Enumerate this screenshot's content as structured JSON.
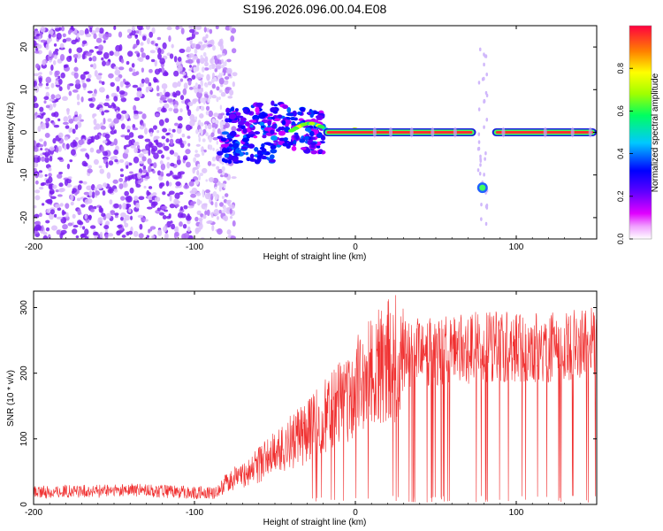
{
  "figure_title": "S196.2026.096.00.04.E08",
  "colors": {
    "snr_line": "#f03030",
    "axis": "#000000",
    "noise": "#8a3ff0",
    "band_red": "#ff2a2a"
  },
  "chart_data": [
    {
      "type": "heatmap",
      "title": "S196.2026.096.00.04.E08",
      "xlabel": "Height of straight line (km)",
      "ylabel": "Frequency (Hz)",
      "xlim": [
        -200,
        150
      ],
      "ylim": [
        -25,
        25
      ],
      "x_ticks": [
        -200,
        -100,
        0,
        100
      ],
      "y_ticks": [
        -20,
        -10,
        0,
        10,
        20
      ],
      "colorbar": {
        "label": "Normalized spectral amplitude",
        "range": [
          0,
          1
        ],
        "ticks": [
          0.0,
          0.2,
          0.4,
          0.6,
          0.8
        ],
        "tick_labels": [
          "0.0",
          "0.2",
          "0.4",
          "0.6",
          "0.8"
        ],
        "stops": [
          "#ffffff",
          "#e000ff",
          "#6000ff",
          "#0000ff",
          "#00c0ff",
          "#00ff60",
          "#a0ff00",
          "#ffff00",
          "#ff8000",
          "#ff0000"
        ]
      },
      "features": [
        {
          "label": "noise",
          "x_range": [
            -200,
            -85
          ],
          "freq_range": [
            -25,
            25
          ],
          "amplitude": 0.1
        },
        {
          "label": "transition",
          "x_range": [
            -85,
            -20
          ],
          "freq_range": [
            -5,
            5
          ],
          "amplitude": 0.35
        },
        {
          "label": "signal band",
          "x_range": [
            -20,
            150
          ],
          "freq": 0,
          "amplitude": 0.95
        },
        {
          "label": "gap",
          "x_range": [
            75,
            85
          ]
        },
        {
          "label": "offset blob",
          "x": 79,
          "freq": -13,
          "amplitude": 0.5
        }
      ]
    },
    {
      "type": "line",
      "xlabel": "Height of straight line (km)",
      "ylabel": "SNR (10 * v/v)",
      "xlim": [
        -200,
        150
      ],
      "ylim": [
        0,
        325
      ],
      "x_ticks": [
        -200,
        -100,
        0,
        100
      ],
      "y_ticks": [
        0,
        100,
        200,
        300
      ],
      "series": [
        {
          "name": "SNR",
          "x": [
            -200,
            -180,
            -160,
            -140,
            -120,
            -100,
            -90,
            -85,
            -80,
            -70,
            -60,
            -50,
            -40,
            -30,
            -20,
            -10,
            0,
            10,
            20,
            30,
            40,
            60,
            80,
            100,
            120,
            140,
            150
          ],
          "values": [
            18,
            20,
            20,
            22,
            20,
            18,
            17,
            20,
            35,
            45,
            60,
            80,
            95,
            110,
            130,
            150,
            175,
            200,
            215,
            225,
            230,
            235,
            240,
            240,
            240,
            245,
            245
          ]
        }
      ]
    }
  ]
}
